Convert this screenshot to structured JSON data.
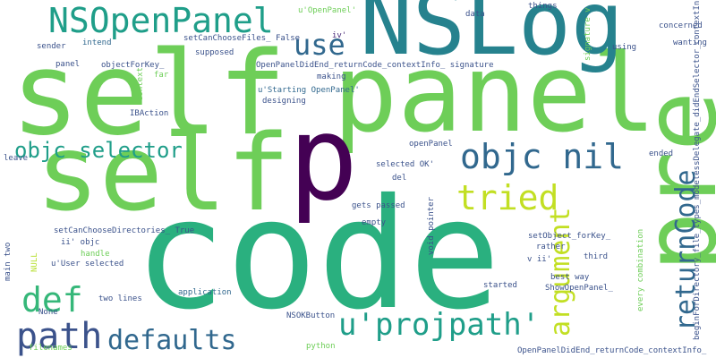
{
  "palette": {
    "dark_purple": "#440154",
    "navy": "#3b528b",
    "blue": "#31688e",
    "teal": "#26828e",
    "cyan": "#1f9e89",
    "green": "#35b779",
    "light_green": "#6ece58",
    "yellow_green": "#b5de2b",
    "purple": "#482878"
  },
  "words": [
    {
      "id": "self-1",
      "text": "self",
      "color": "#6ece58"
    },
    {
      "id": "panel-1",
      "text": "panel",
      "color": "#6ece58"
    },
    {
      "id": "code",
      "text": "code",
      "color": "#2ab07f"
    },
    {
      "id": "self-2",
      "text": "self",
      "color": "#6ece58"
    },
    {
      "id": "p",
      "text": "p",
      "color": "#440154"
    },
    {
      "id": "pre",
      "text": "pre",
      "color": "#6ece58"
    },
    {
      "id": "nslog",
      "text": "NSLog",
      "color": "#26828e"
    },
    {
      "id": "nsopenpanel",
      "text": "NSOpenPanel",
      "color": "#1f9e89"
    },
    {
      "id": "use",
      "text": "use",
      "color": "#31688e"
    },
    {
      "id": "objc-nil",
      "text": "objc nil",
      "color": "#31688e"
    },
    {
      "id": "objc-selector",
      "text": "objc selector",
      "color": "#1f9e89"
    },
    {
      "id": "tried",
      "text": "tried",
      "color": "#c2df23"
    },
    {
      "id": "def",
      "text": "def",
      "color": "#35b779"
    },
    {
      "id": "path",
      "text": "path",
      "color": "#3b528b"
    },
    {
      "id": "defaults",
      "text": "defaults",
      "color": "#31688e"
    },
    {
      "id": "uprojpath",
      "text": "u'projpath'",
      "color": "#1f9e89"
    },
    {
      "id": "argument",
      "text": "argument",
      "color": "#c2df23"
    },
    {
      "id": "returncode",
      "text": "returnCode",
      "color": "#31688e"
    },
    {
      "id": "uopenpanel",
      "text": "u'OpenPanel'",
      "color": "#6ece58"
    },
    {
      "id": "data",
      "text": "data",
      "color": "#3b528b"
    },
    {
      "id": "things",
      "text": "things",
      "color": "#3b528b"
    },
    {
      "id": "signature-v",
      "text": "signature v",
      "color": "#6ece58"
    },
    {
      "id": "concerned",
      "text": "concerned",
      "color": "#3b528b"
    },
    {
      "id": "sender",
      "text": "sender",
      "color": "#3b528b"
    },
    {
      "id": "intend",
      "text": "intend",
      "color": "#31688e"
    },
    {
      "id": "setcanchoosefiles-false",
      "text": "setCanChooseFiles_ False",
      "color": "#3b528b"
    },
    {
      "id": "iv",
      "text": "iv'",
      "color": "#482878"
    },
    {
      "id": "using",
      "text": "using",
      "color": "#3b528b"
    },
    {
      "id": "wanting",
      "text": "wanting",
      "color": "#3b528b"
    },
    {
      "id": "supposed",
      "text": "supposed",
      "color": "#3b528b"
    },
    {
      "id": "panel-2",
      "text": "panel",
      "color": "#3b528b"
    },
    {
      "id": "objectforkey",
      "text": "objectForKey_",
      "color": "#3b528b"
    },
    {
      "id": "openpaneldidend-signature",
      "text": "OpenPanelDidEnd_returnCode_contextInfo_ signature",
      "color": "#3b528b"
    },
    {
      "id": "context",
      "text": "context",
      "color": "#6ece58"
    },
    {
      "id": "far",
      "text": "far",
      "color": "#6ece58"
    },
    {
      "id": "making",
      "text": "making",
      "color": "#3b528b"
    },
    {
      "id": "ustarting-openpanel",
      "text": "u'Starting OpenPanel'",
      "color": "#31688e"
    },
    {
      "id": "designing",
      "text": "designing",
      "color": "#3b528b"
    },
    {
      "id": "ibaction",
      "text": "IBAction",
      "color": "#3b528b"
    },
    {
      "id": "beginfordirectory",
      "text": "beginForDirectory_file_types_modelessDelegate_didEndSelector_contextInfo_",
      "color": "#3b528b"
    },
    {
      "id": "openpanel",
      "text": "openPanel",
      "color": "#3b528b"
    },
    {
      "id": "ended",
      "text": "ended",
      "color": "#3b528b"
    },
    {
      "id": "selected-ok",
      "text": "selected OK'",
      "color": "#3b528b"
    },
    {
      "id": "leave",
      "text": "leave",
      "color": "#3b528b"
    },
    {
      "id": "del",
      "text": "del",
      "color": "#3b528b"
    },
    {
      "id": "gets-passed",
      "text": "gets passed",
      "color": "#3b528b"
    },
    {
      "id": "empty",
      "text": "empty",
      "color": "#3b528b"
    },
    {
      "id": "setcanchoosedirectories-true",
      "text": "setCanChooseDirectories_ True",
      "color": "#3b528b"
    },
    {
      "id": "ii-objc",
      "text": "ii' objc",
      "color": "#3b528b"
    },
    {
      "id": "void-pointer",
      "text": "void pointer",
      "color": "#3b528b"
    },
    {
      "id": "setobject-forkey",
      "text": "setObject_forKey_",
      "color": "#3b528b"
    },
    {
      "id": "rather",
      "text": "rather",
      "color": "#3b528b"
    },
    {
      "id": "v-ii",
      "text": "v ii'",
      "color": "#3b528b"
    },
    {
      "id": "third",
      "text": "third",
      "color": "#3b528b"
    },
    {
      "id": "best-way",
      "text": "best way",
      "color": "#3b528b"
    },
    {
      "id": "main-two",
      "text": "main two",
      "color": "#3b528b"
    },
    {
      "id": "null",
      "text": "NULL",
      "color": "#b5de2b"
    },
    {
      "id": "handle",
      "text": "handle",
      "color": "#6ece58"
    },
    {
      "id": "uuser-selected",
      "text": "u'User selected",
      "color": "#3b528b"
    },
    {
      "id": "started",
      "text": "started",
      "color": "#3b528b"
    },
    {
      "id": "showopenpanel",
      "text": "ShowOpenPanel_",
      "color": "#3b528b"
    },
    {
      "id": "every-combination",
      "text": "every combination",
      "color": "#6ece58"
    },
    {
      "id": "two-lines",
      "text": "two lines",
      "color": "#3b528b"
    },
    {
      "id": "application",
      "text": "application",
      "color": "#31688e"
    },
    {
      "id": "none",
      "text": "None",
      "color": "#3b528b"
    },
    {
      "id": "nsokbutton",
      "text": "NSOKButton",
      "color": "#3b528b"
    },
    {
      "id": "filenames",
      "text": "filenames",
      "color": "#6ece58"
    },
    {
      "id": "python",
      "text": "python",
      "color": "#6ece58"
    },
    {
      "id": "openpaneldidend-2",
      "text": "OpenPanelDidEnd_returnCode_contextInfo_",
      "color": "#3b528b"
    }
  ]
}
